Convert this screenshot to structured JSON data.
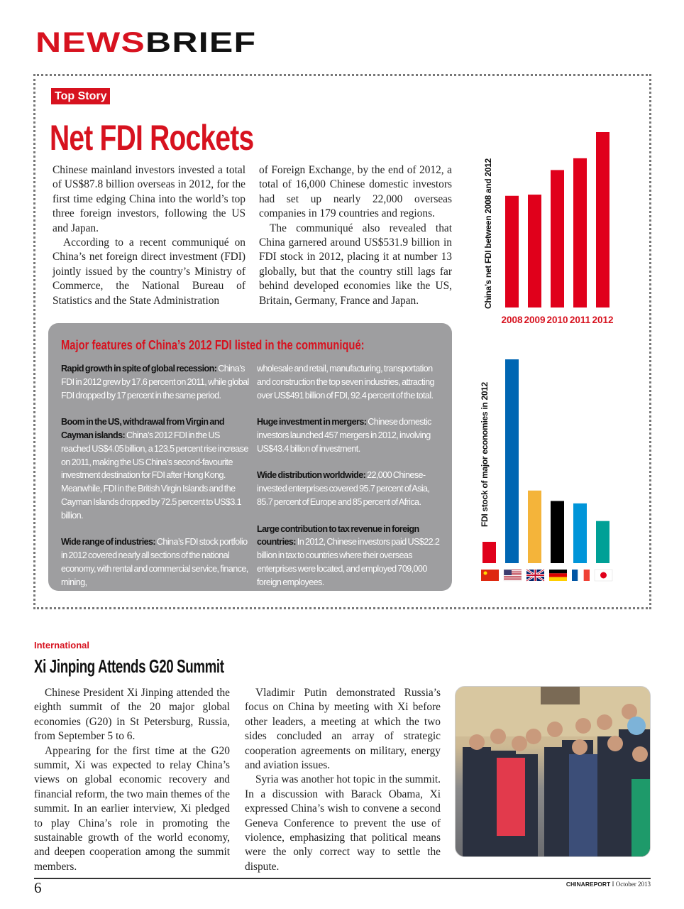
{
  "masthead": {
    "part1": "NEWS",
    "part2": "BRIEF"
  },
  "top_story": {
    "tag": "Top Story",
    "headline": "Net FDI Rockets",
    "col1": [
      "Chinese mainland investors invested a total of US$87.8 billion overseas in 2012, for the first time edging China into the world’s top three foreign investors, following the US and Japan.",
      "According to a recent communiqué on China’s net foreign direct investment (FDI) jointly issued by the country’s Ministry of Commerce, the National Bureau of Statistics and the State Administration"
    ],
    "col2": [
      "of Foreign Exchange, by the end of 2012, a total of 16,000 Chinese domestic investors had set up nearly 22,000 overseas companies in 179 countries and regions.",
      "The communiqué also revealed that China garnered around US$531.9 billion in FDI stock in 2012, placing it at number 13 globally, but that the country still lags far behind developed economies like the US, Britain, Germany, France and Japan."
    ]
  },
  "features": {
    "title": "Major features of China’s 2012 FDI listed in the communiqué:",
    "items": [
      {
        "lead": "Rapid growth in spite of global recession:",
        "text": " China’s FDI in 2012 grew by 17.6 percent on 2011, while global FDI dropped by 17 percent in the same period."
      },
      {
        "lead": "Boom in the US, withdrawal from Virgin and Cayman islands:",
        "text": " China’s 2012 FDI in the US reached US$4.05 billion, a 123.5 percent rise increase on 2011, making the US China’s second-favourite investment destination for FDI after  Hong Kong. Meanwhile, FDI in the British Virgin Islands and the Cayman Islands dropped by 72.5 percent to US$3.1 billion."
      },
      {
        "lead": "Wide range of industries:",
        "text": " China’s FDI stock portfolio in 2012 covered nearly all sections of the national economy, with rental and commercial service, finance, mining,"
      },
      {
        "lead": "",
        "text": "wholesale and retail, manufacturing, transportation and construction the top seven industries, attracting over US$491 billion of FDI, 92.4 percent of the total."
      },
      {
        "lead": "Huge investment in mergers:",
        "text": " Chinese domestic investors launched 457 mergers in 2012, involving US$43.4 billion of investment."
      },
      {
        "lead": "Wide distribution worldwide:",
        "text": " 22,000 Chinese-invested enterprises covered 95.7 percent of Asia, 85.7 percent of Europe and 85 percent of Africa."
      },
      {
        "lead": "Large contribution to tax revenue in foreign countries:",
        "text": " In 2012, Chinese investors paid US$22.2 billion in tax to countries where their overseas enterprises were located, and employed 709,000 foreign employees."
      }
    ]
  },
  "chart_data": [
    {
      "type": "bar",
      "title": "China’s net FDI between 2008 and 2012",
      "categories": [
        "2008",
        "2009",
        "2010",
        "2011",
        "2012"
      ],
      "values": [
        55.9,
        56.5,
        68.8,
        74.7,
        87.8
      ],
      "color": "#e0001b",
      "grid": false
    },
    {
      "type": "bar",
      "title": "FDI stock of major economies in 2012",
      "categories": [
        "China",
        "US",
        "UK",
        "Germany",
        "France",
        "Japan"
      ],
      "values": [
        532,
        5080,
        1810,
        1550,
        1490,
        1050
      ],
      "colors": [
        "#e0001b",
        "#0066b3",
        "#f4b43a",
        "#000000",
        "#0095d9",
        "#00a096"
      ],
      "category_icons": [
        "flag-china",
        "flag-us",
        "flag-uk",
        "flag-germany",
        "flag-france",
        "flag-japan"
      ],
      "grid": false
    }
  ],
  "g20": {
    "section": "International",
    "headline": "Xi Jinping Attends G20 Summit",
    "col1": [
      "Chinese President Xi Jinping attended the eighth summit of the 20 major global economies (G20) in St Petersburg, Russia, from September 5 to 6.",
      "Appearing for the first time at the G20 summit, Xi was expected to relay China’s views on global economic recovery and financial reform, the two main themes of the summit. In an earlier interview, Xi pledged to play China’s role in promoting the sustainable growth of the world economy, and deepen cooperation among the summit members."
    ],
    "col2": [
      "Vladimir Putin demonstrated Russia’s focus on China by meeting with Xi before other leaders, a meeting at which the two sides concluded an array of strategic cooperation agreements on military, energy and aviation issues.",
      "Syria was another hot topic in the summit. In a discussion with Barack Obama, Xi expressed China’s wish to convene a second Geneva Conference to prevent the use of violence, emphasizing that political means were the only correct way to settle the dispute."
    ]
  },
  "footer": {
    "page": "6",
    "publication": "CHINAREPORT",
    "separator": "I",
    "issue": "October 2013"
  }
}
